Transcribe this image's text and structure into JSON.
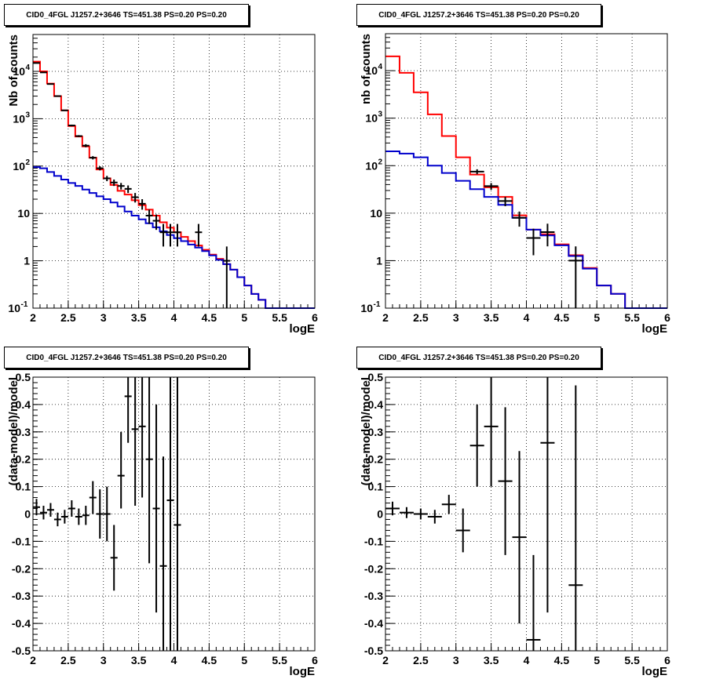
{
  "colors": {
    "data": "#000000",
    "model_total": "#ff0000",
    "model_background": "#0000cc",
    "grid": "#000000"
  },
  "chart_data": [
    {
      "type": "line",
      "title": "CID0_4FGL J1257.2+3646 TS=451.38 PS=0.20 PS=0.20",
      "xlabel": "logE",
      "ylabel": "Nb of counts",
      "xlim": [
        2,
        6
      ],
      "ylim": [
        0.1,
        60000
      ],
      "yscale": "log",
      "grid": true,
      "xticks": [
        "2",
        "2.5",
        "3",
        "3.5",
        "4",
        "4.5",
        "5",
        "5.5",
        "6"
      ],
      "yticks": [
        {
          "v": 0.1,
          "label": "10",
          "sup": "-1"
        },
        {
          "v": 1,
          "label": "1",
          "sup": ""
        },
        {
          "v": 10,
          "label": "10",
          "sup": ""
        },
        {
          "v": 100,
          "label": "10",
          "sup": "2"
        },
        {
          "v": 1000,
          "label": "10",
          "sup": "3"
        },
        {
          "v": 10000,
          "label": "10",
          "sup": "4"
        }
      ],
      "bin_edges": [
        2.0,
        2.1,
        2.2,
        2.3,
        2.4,
        2.5,
        2.6,
        2.7,
        2.8,
        2.9,
        3.0,
        3.1,
        3.2,
        3.3,
        3.4,
        3.5,
        3.6,
        3.7,
        3.8,
        3.9,
        4.0,
        4.1,
        4.2,
        4.3,
        4.4,
        4.5,
        4.6,
        4.7,
        4.8,
        4.9,
        5.0,
        5.1,
        5.2,
        5.3,
        5.4,
        5.5,
        5.6,
        5.7,
        5.8,
        5.9,
        6.0
      ],
      "series": [
        {
          "name": "model_total",
          "step": [
            16000,
            10000,
            5500,
            3000,
            1500,
            700,
            420,
            260,
            150,
            85,
            55,
            40,
            30,
            25,
            19,
            15,
            12,
            9,
            6.5,
            5,
            4,
            3.2,
            2.6,
            2.1,
            1.7,
            1.35,
            1.1,
            0.85,
            0.65,
            0.45,
            0.3,
            0.2,
            0.15,
            0.1,
            0.1,
            0.1,
            0.1,
            0.1,
            0.1,
            0.1
          ]
        },
        {
          "name": "model_background",
          "step": [
            95,
            90,
            75,
            62,
            52,
            44,
            38,
            32,
            27,
            23,
            20,
            17,
            14,
            11,
            9,
            7.5,
            6.2,
            5.1,
            4.2,
            3.5,
            3.0,
            2.6,
            2.2,
            1.9,
            1.6,
            1.3,
            1.05,
            0.85,
            0.65,
            0.45,
            0.3,
            0.2,
            0.15,
            0.1,
            0.1,
            0.1,
            0.1,
            0.1,
            0.1,
            0.1
          ]
        },
        {
          "name": "data",
          "points": [
            {
              "x": 2.05,
              "y": 15000,
              "lo": 14800,
              "hi": 15200
            },
            {
              "x": 2.15,
              "y": 9500,
              "lo": 9400,
              "hi": 9600
            },
            {
              "x": 2.25,
              "y": 5400,
              "lo": 5300,
              "hi": 5500
            },
            {
              "x": 2.35,
              "y": 3000,
              "lo": 2950,
              "hi": 3050
            },
            {
              "x": 2.45,
              "y": 1500,
              "lo": 1460,
              "hi": 1540
            },
            {
              "x": 2.55,
              "y": 720,
              "lo": 690,
              "hi": 750
            },
            {
              "x": 2.65,
              "y": 430,
              "lo": 410,
              "hi": 450
            },
            {
              "x": 2.75,
              "y": 270,
              "lo": 250,
              "hi": 290
            },
            {
              "x": 2.85,
              "y": 150,
              "lo": 138,
              "hi": 162
            },
            {
              "x": 2.95,
              "y": 90,
              "lo": 81,
              "hi": 99
            },
            {
              "x": 3.05,
              "y": 55,
              "lo": 48,
              "hi": 62
            },
            {
              "x": 3.15,
              "y": 45,
              "lo": 38,
              "hi": 52
            },
            {
              "x": 3.25,
              "y": 38,
              "lo": 32,
              "hi": 44
            },
            {
              "x": 3.35,
              "y": 33,
              "lo": 27,
              "hi": 39
            },
            {
              "x": 3.45,
              "y": 22,
              "lo": 17,
              "hi": 27
            },
            {
              "x": 3.55,
              "y": 16,
              "lo": 12,
              "hi": 20
            },
            {
              "x": 3.65,
              "y": 9,
              "lo": 6,
              "hi": 12
            },
            {
              "x": 3.75,
              "y": 7,
              "lo": 4.5,
              "hi": 9.5
            },
            {
              "x": 3.85,
              "y": 4,
              "lo": 2,
              "hi": 6
            },
            {
              "x": 3.95,
              "y": 4,
              "lo": 2,
              "hi": 6
            },
            {
              "x": 4.05,
              "y": 4,
              "lo": 2,
              "hi": 6
            },
            {
              "x": 4.35,
              "y": 4,
              "lo": 2,
              "hi": 6
            },
            {
              "x": 4.75,
              "y": 1,
              "lo": 0.1,
              "hi": 2
            }
          ]
        }
      ]
    },
    {
      "type": "line",
      "title": "CID0_4FGL J1257.2+3646 TS=451.38 PS=0.20 PS=0.20",
      "xlabel": "logE",
      "ylabel": "nb of counts",
      "xlim": [
        2,
        6
      ],
      "ylim": [
        0.1,
        60000
      ],
      "yscale": "log",
      "grid": true,
      "xticks": [
        "2",
        "2.5",
        "3",
        "3.5",
        "4",
        "4.5",
        "5",
        "5.5",
        "6"
      ],
      "yticks": [
        {
          "v": 0.1,
          "label": "10",
          "sup": "-1"
        },
        {
          "v": 1,
          "label": "1",
          "sup": ""
        },
        {
          "v": 10,
          "label": "10",
          "sup": ""
        },
        {
          "v": 100,
          "label": "10",
          "sup": "2"
        },
        {
          "v": 1000,
          "label": "10",
          "sup": "3"
        },
        {
          "v": 10000,
          "label": "10",
          "sup": "4"
        }
      ],
      "bin_edges": [
        2.0,
        2.2,
        2.4,
        2.6,
        2.8,
        3.0,
        3.2,
        3.4,
        3.6,
        3.8,
        4.0,
        4.2,
        4.4,
        4.6,
        4.8,
        5.0,
        5.2,
        5.4,
        5.6,
        5.8,
        6.0
      ],
      "series": [
        {
          "name": "model_total",
          "step": [
            20000,
            9000,
            3500,
            1200,
            420,
            150,
            65,
            35,
            22,
            9,
            4.5,
            3.6,
            2.2,
            1.3,
            0.7,
            0.3,
            0.2,
            0.1,
            0.1,
            0.1
          ]
        },
        {
          "name": "model_background",
          "step": [
            200,
            180,
            150,
            100,
            70,
            48,
            32,
            22,
            15,
            8,
            4.5,
            3.4,
            2.1,
            1.25,
            0.68,
            0.3,
            0.2,
            0.1,
            0.1,
            0.1
          ]
        },
        {
          "name": "data",
          "points": [
            {
              "x": 3.3,
              "y": 75,
              "lo": 66,
              "hi": 84
            },
            {
              "x": 3.5,
              "y": 37,
              "lo": 31,
              "hi": 43
            },
            {
              "x": 3.7,
              "y": 18,
              "lo": 14,
              "hi": 22
            },
            {
              "x": 3.9,
              "y": 8,
              "lo": 5.2,
              "hi": 10.8
            },
            {
              "x": 4.1,
              "y": 3,
              "lo": 1.3,
              "hi": 4.7
            },
            {
              "x": 4.3,
              "y": 4,
              "lo": 2,
              "hi": 6
            },
            {
              "x": 4.7,
              "y": 1,
              "lo": 0.1,
              "hi": 2
            }
          ]
        }
      ]
    },
    {
      "type": "scatter",
      "title": "CID0_4FGL J1257.2+3646 TS=451.38 PS=0.20 PS=0.20",
      "xlabel": "logE",
      "ylabel": "(data-model)/model",
      "xlim": [
        2,
        6
      ],
      "ylim": [
        -0.5,
        0.5
      ],
      "grid": true,
      "xticks": [
        "2",
        "2.5",
        "3",
        "3.5",
        "4",
        "4.5",
        "5",
        "5.5",
        "6"
      ],
      "yticks": [
        "-0.5",
        "-0.4",
        "-0.3",
        "-0.2",
        "-0.1",
        "0",
        "0.1",
        "0.2",
        "0.3",
        "0.4",
        "0.5"
      ],
      "series": [
        {
          "name": "data",
          "points": [
            {
              "x": 2.05,
              "y": 0.025,
              "lo": -0.005,
              "hi": 0.055
            },
            {
              "x": 2.15,
              "y": 0.005,
              "lo": -0.02,
              "hi": 0.03
            },
            {
              "x": 2.25,
              "y": 0.015,
              "lo": -0.01,
              "hi": 0.04
            },
            {
              "x": 2.35,
              "y": -0.02,
              "lo": -0.045,
              "hi": 0.005
            },
            {
              "x": 2.45,
              "y": -0.01,
              "lo": -0.035,
              "hi": 0.015
            },
            {
              "x": 2.55,
              "y": 0.02,
              "lo": -0.01,
              "hi": 0.05
            },
            {
              "x": 2.65,
              "y": -0.01,
              "lo": -0.04,
              "hi": 0.02
            },
            {
              "x": 2.75,
              "y": -0.005,
              "lo": -0.04,
              "hi": 0.03
            },
            {
              "x": 2.85,
              "y": 0.06,
              "lo": 0.0,
              "hi": 0.12
            },
            {
              "x": 2.95,
              "y": 0.0,
              "lo": -0.09,
              "hi": 0.09
            },
            {
              "x": 3.05,
              "y": 0.0,
              "lo": -0.1,
              "hi": 0.1
            },
            {
              "x": 3.15,
              "y": -0.16,
              "lo": -0.28,
              "hi": -0.04
            },
            {
              "x": 3.25,
              "y": 0.14,
              "lo": 0.02,
              "hi": 0.3
            },
            {
              "x": 3.35,
              "y": 0.43,
              "lo": 0.26,
              "hi": 0.5
            },
            {
              "x": 3.45,
              "y": 0.31,
              "lo": 0.03,
              "hi": 0.5
            },
            {
              "x": 3.55,
              "y": 0.32,
              "lo": 0.06,
              "hi": 0.5
            },
            {
              "x": 3.65,
              "y": 0.2,
              "lo": -0.18,
              "hi": 0.5
            },
            {
              "x": 3.75,
              "y": 0.02,
              "lo": -0.36,
              "hi": 0.4
            },
            {
              "x": 3.85,
              "y": -0.19,
              "lo": -0.5,
              "hi": 0.21
            },
            {
              "x": 3.95,
              "y": 0.05,
              "lo": -0.5,
              "hi": 0.5
            },
            {
              "x": 4.05,
              "y": -0.04,
              "lo": -0.5,
              "hi": 0.5
            }
          ]
        }
      ]
    },
    {
      "type": "scatter",
      "title": "CID0_4FGL J1257.2+3646 TS=451.38 PS=0.20 PS=0.20",
      "xlabel": "logE",
      "ylabel": "(data-model)/model",
      "xlim": [
        2,
        6
      ],
      "ylim": [
        -0.5,
        0.5
      ],
      "grid": true,
      "xticks": [
        "2",
        "2.5",
        "3",
        "3.5",
        "4",
        "4.5",
        "5",
        "5.5",
        "6"
      ],
      "yticks": [
        "-0.5",
        "-0.4",
        "-0.3",
        "-0.2",
        "-0.1",
        "0",
        "0.1",
        "0.2",
        "0.3",
        "0.4",
        "0.5"
      ],
      "series": [
        {
          "name": "data",
          "points": [
            {
              "x": 2.1,
              "y": 0.02,
              "lo": -0.005,
              "hi": 0.045
            },
            {
              "x": 2.3,
              "y": 0.005,
              "lo": -0.015,
              "hi": 0.025
            },
            {
              "x": 2.5,
              "y": 0.0,
              "lo": -0.02,
              "hi": 0.02
            },
            {
              "x": 2.7,
              "y": -0.01,
              "lo": -0.035,
              "hi": 0.015
            },
            {
              "x": 2.9,
              "y": 0.035,
              "lo": 0.0,
              "hi": 0.07
            },
            {
              "x": 3.1,
              "y": -0.06,
              "lo": -0.14,
              "hi": 0.02
            },
            {
              "x": 3.3,
              "y": 0.25,
              "lo": 0.1,
              "hi": 0.4
            },
            {
              "x": 3.5,
              "y": 0.32,
              "lo": 0.1,
              "hi": 0.5
            },
            {
              "x": 3.7,
              "y": 0.12,
              "lo": -0.15,
              "hi": 0.39
            },
            {
              "x": 3.9,
              "y": -0.085,
              "lo": -0.4,
              "hi": 0.23
            },
            {
              "x": 4.1,
              "y": -0.46,
              "lo": -0.5,
              "hi": -0.15
            },
            {
              "x": 4.3,
              "y": 0.26,
              "lo": -0.36,
              "hi": 0.5
            },
            {
              "x": 4.7,
              "y": -0.26,
              "lo": -0.5,
              "hi": 0.47
            }
          ]
        }
      ]
    }
  ]
}
